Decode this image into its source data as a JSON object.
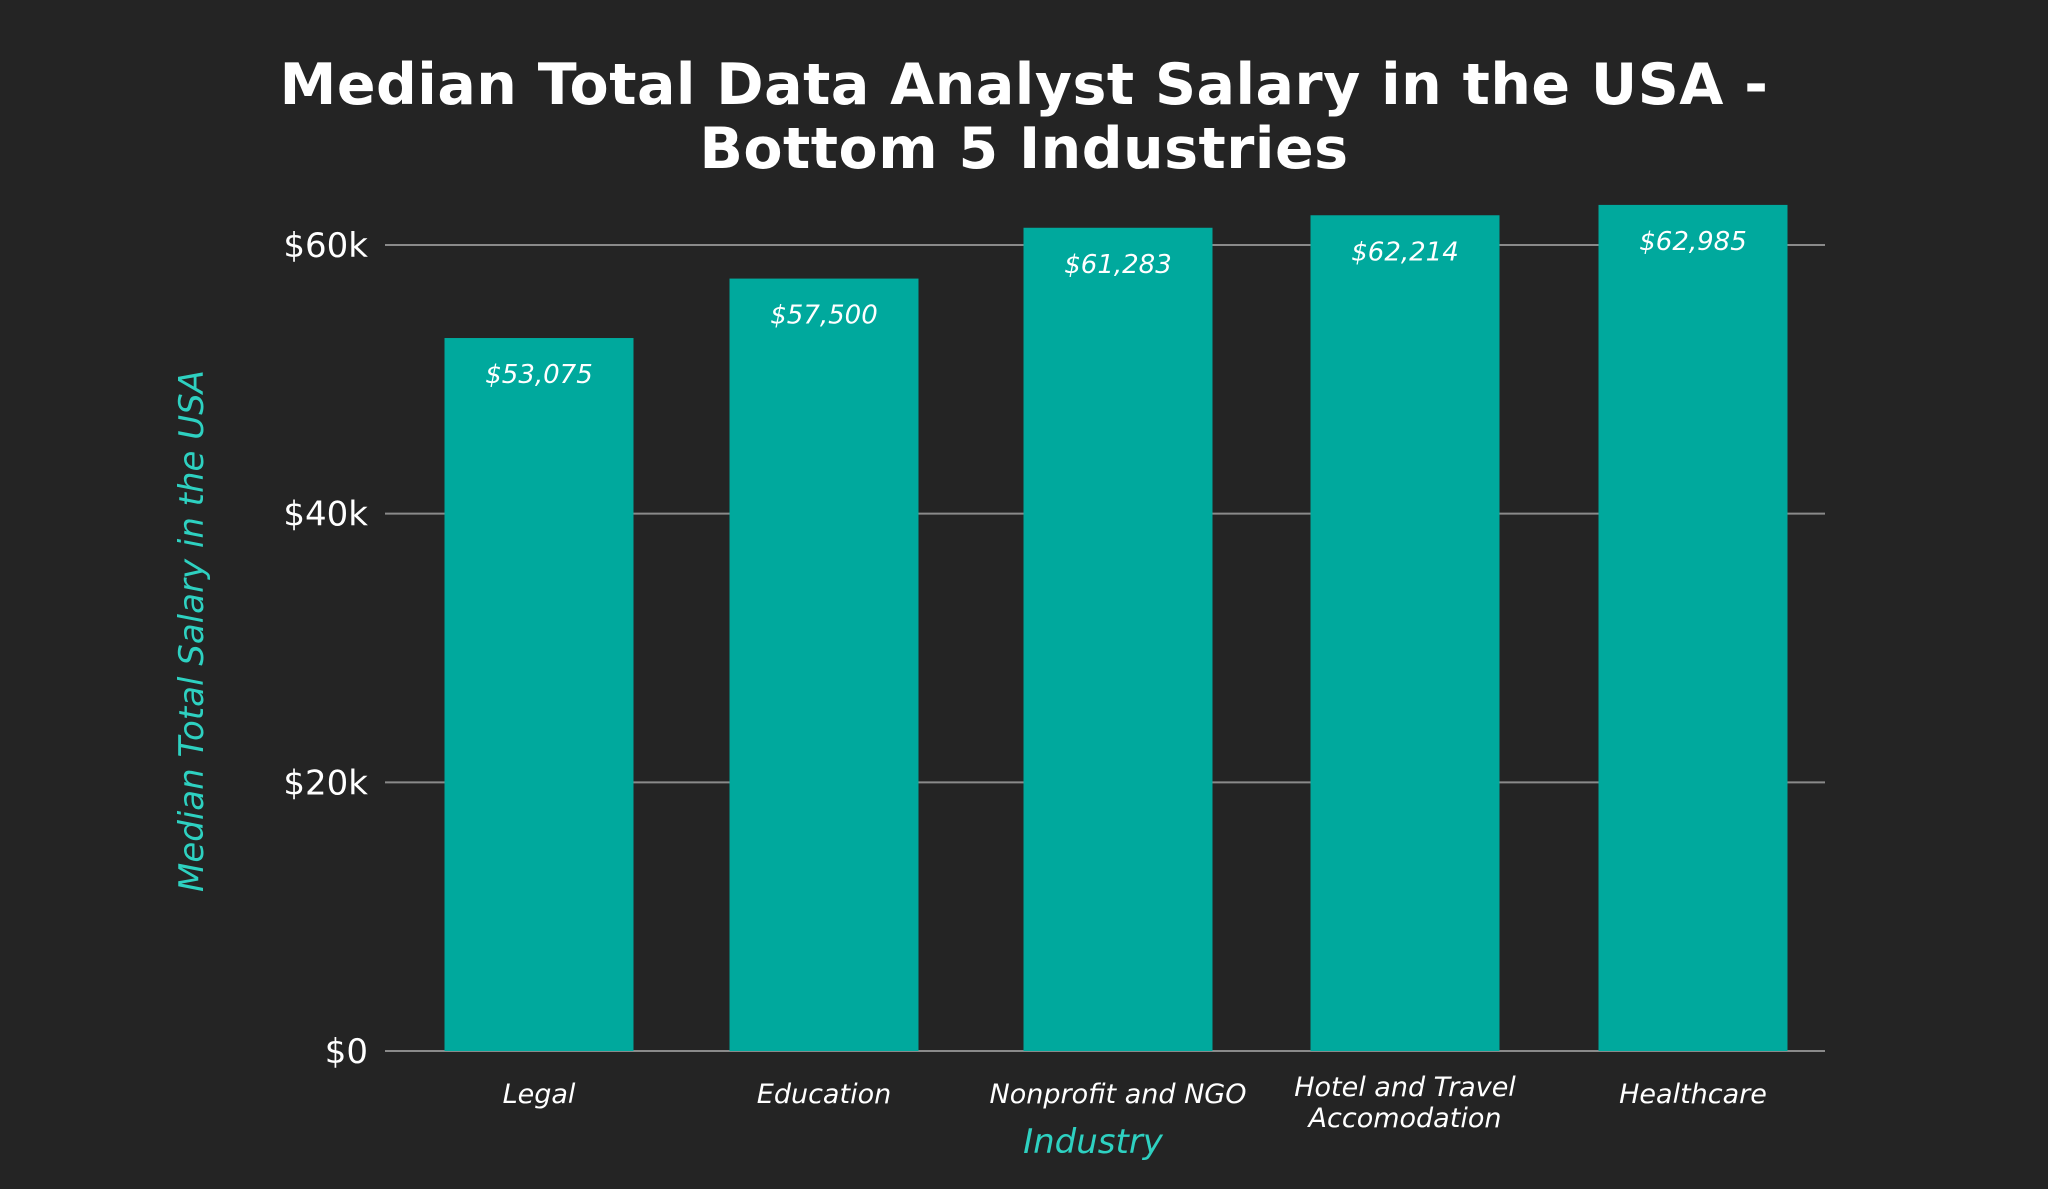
{
  "chart_data": {
    "type": "bar",
    "title_lines": [
      "Median Total Data Analyst Salary in the USA -",
      "Bottom 5 Industries"
    ],
    "xlabel": "Industry",
    "ylabel": "Median Total Salary in the USA",
    "categories": [
      [
        "Legal"
      ],
      [
        "Education"
      ],
      [
        "Nonprofit and NGO"
      ],
      [
        "Hotel and Travel",
        "Accomodation"
      ],
      [
        "Healthcare"
      ]
    ],
    "values": [
      53075,
      57500,
      61283,
      62214,
      62985
    ],
    "value_labels": [
      "$53,075",
      "$57,500",
      "$61,283",
      "$62,214",
      "$62,985"
    ],
    "yticks": [
      0,
      20000,
      40000,
      60000
    ],
    "ytick_labels": [
      "$0",
      "$20k",
      "$40k",
      "$60k"
    ],
    "ylim": [
      0,
      60000
    ],
    "grid": true,
    "legend": "none",
    "colors": {
      "bar": "#00a99d",
      "background": "#242424",
      "grid": "#8a8a8a",
      "text": "#ffffff",
      "axis_title": "#2ed1c1"
    }
  }
}
